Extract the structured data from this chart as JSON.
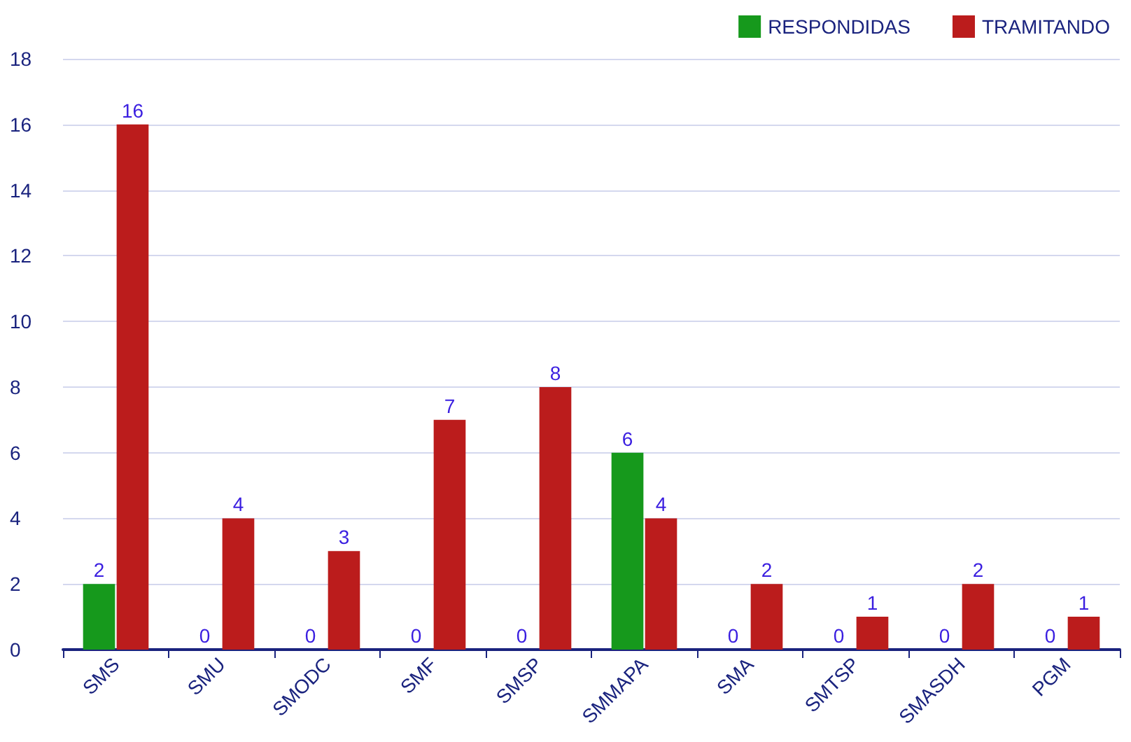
{
  "chart_data": {
    "type": "bar",
    "categories": [
      "SMS",
      "SMU",
      "SMODC",
      "SMF",
      "SMSP",
      "SMMAPA",
      "SMA",
      "SMTSP",
      "SMASDH",
      "PGM"
    ],
    "series": [
      {
        "name": "RESPONDIDAS",
        "color": "#16991c",
        "values": [
          2,
          0,
          0,
          0,
          0,
          6,
          0,
          0,
          0,
          0
        ]
      },
      {
        "name": "TRAMITANDO",
        "color": "#bb1c1c",
        "values": [
          16,
          4,
          3,
          7,
          8,
          4,
          2,
          1,
          2,
          1
        ]
      }
    ],
    "ylim": [
      0,
      18
    ],
    "yticks": [
      0,
      2,
      4,
      6,
      8,
      10,
      12,
      14,
      16,
      18
    ],
    "grid": "y",
    "legend": "top right",
    "data_labels": true
  }
}
